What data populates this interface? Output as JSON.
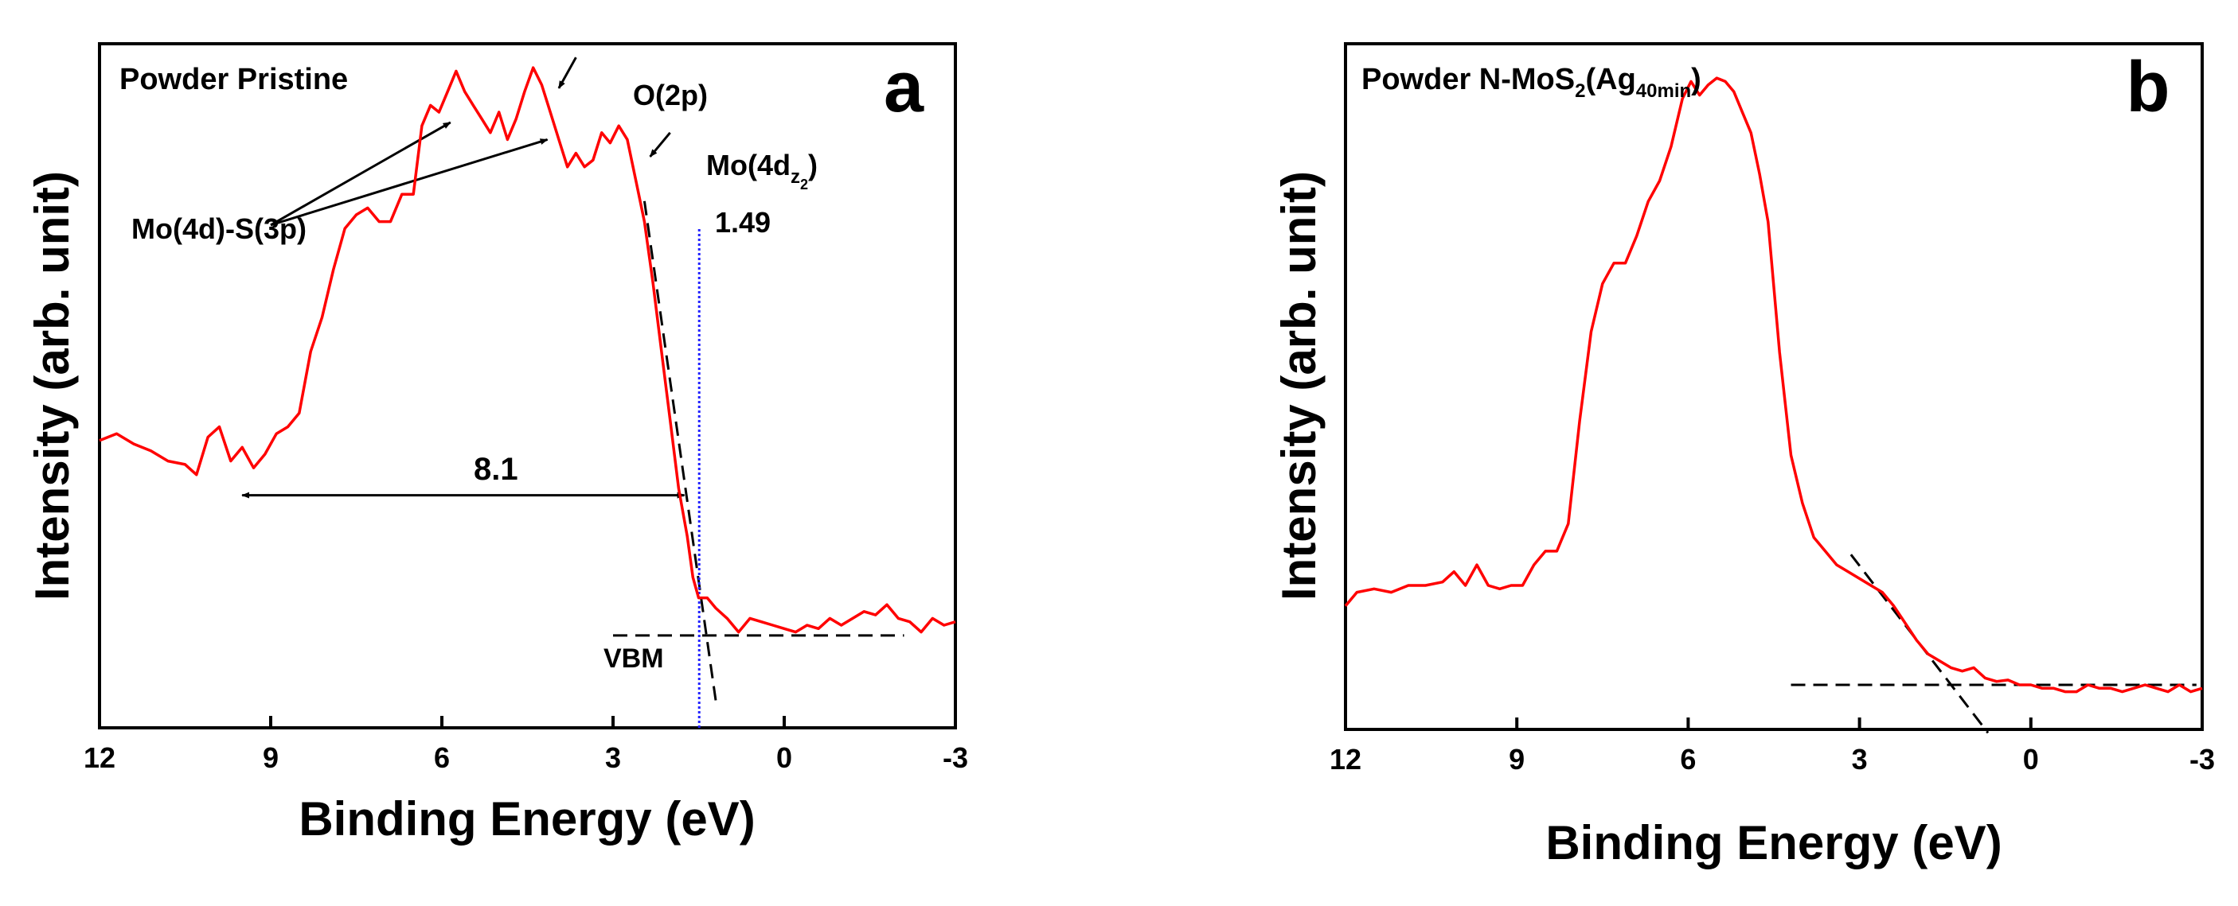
{
  "chart_data": [
    {
      "type": "line",
      "panel_label": "a",
      "title": "Powder Pristine",
      "xlabel": "Binding Energy (eV)",
      "ylabel": "Intensity (arb. unit)",
      "xlim": [
        12,
        -3
      ],
      "xticks": [
        12,
        9,
        6,
        3,
        0,
        -3
      ],
      "xtick_labels": [
        "12",
        "9",
        "6",
        "3",
        "0",
        "-3"
      ],
      "ylim": [
        0,
        1
      ],
      "series": [
        {
          "name": "Powder Pristine",
          "color": "#ff0000",
          "x": [
            12.0,
            11.7,
            11.4,
            11.1,
            10.8,
            10.5,
            10.3,
            10.1,
            9.9,
            9.7,
            9.5,
            9.3,
            9.1,
            8.9,
            8.7,
            8.5,
            8.3,
            8.1,
            7.9,
            7.7,
            7.5,
            7.3,
            7.1,
            6.9,
            6.7,
            6.5,
            6.35,
            6.2,
            6.05,
            5.9,
            5.75,
            5.6,
            5.45,
            5.3,
            5.15,
            5.0,
            4.85,
            4.7,
            4.55,
            4.4,
            4.25,
            4.1,
            3.95,
            3.8,
            3.65,
            3.5,
            3.35,
            3.2,
            3.05,
            2.9,
            2.75,
            2.6,
            2.45,
            2.3,
            2.15,
            2.0,
            1.85,
            1.7,
            1.6,
            1.5,
            1.35,
            1.2,
            1.0,
            0.8,
            0.6,
            0.4,
            0.2,
            0.0,
            -0.2,
            -0.4,
            -0.6,
            -0.8,
            -1.0,
            -1.2,
            -1.4,
            -1.6,
            -1.8,
            -2.0,
            -2.2,
            -2.4,
            -2.6,
            -2.8,
            -3.0
          ],
          "values": [
            0.42,
            0.43,
            0.415,
            0.405,
            0.39,
            0.385,
            0.37,
            0.425,
            0.44,
            0.39,
            0.41,
            0.38,
            0.4,
            0.43,
            0.44,
            0.46,
            0.55,
            0.6,
            0.67,
            0.73,
            0.75,
            0.76,
            0.74,
            0.74,
            0.78,
            0.78,
            0.88,
            0.91,
            0.9,
            0.93,
            0.96,
            0.93,
            0.91,
            0.89,
            0.87,
            0.9,
            0.86,
            0.89,
            0.93,
            0.965,
            0.94,
            0.9,
            0.86,
            0.82,
            0.84,
            0.82,
            0.83,
            0.87,
            0.855,
            0.88,
            0.86,
            0.8,
            0.74,
            0.65,
            0.55,
            0.45,
            0.35,
            0.28,
            0.22,
            0.19,
            0.19,
            0.175,
            0.16,
            0.14,
            0.16,
            0.155,
            0.15,
            0.145,
            0.14,
            0.15,
            0.145,
            0.16,
            0.15,
            0.16,
            0.17,
            0.165,
            0.18,
            0.16,
            0.155,
            0.14,
            0.16,
            0.15,
            0.155
          ]
        }
      ],
      "guides": {
        "baseline_dashed": {
          "x": [
            3.0,
            -2.1
          ],
          "y": 0.135
        },
        "edge_tangent_dashed": {
          "x": [
            2.45,
            1.2
          ],
          "y": [
            0.77,
            0.04
          ]
        },
        "vbm_line": {
          "x": 1.49,
          "y": [
            0.0,
            0.73
          ],
          "color": "#2222ff"
        },
        "double_arrow": {
          "x": [
            9.5,
            1.75
          ],
          "y": 0.34
        },
        "label_arrows": [
          {
            "from": [
              9.0,
              0.735
            ],
            "to": [
              5.85,
              0.885
            ]
          },
          {
            "from": [
              9.0,
              0.735
            ],
            "to": [
              4.15,
              0.86
            ]
          },
          {
            "from": [
              3.65,
              0.98
            ],
            "to": [
              3.95,
              0.935
            ]
          },
          {
            "from": [
              2.0,
              0.87
            ],
            "to": [
              2.35,
              0.835
            ]
          }
        ]
      },
      "annotations": {
        "o2p": "O(2p)",
        "mo4dz2_prefix": "Mo(4d",
        "mo4dz2_sub": "z",
        "mo4dz2_subsup": "2",
        "mo4dz2_suffix": ")",
        "mo4d_s3p": "Mo(4d)-S(3p)",
        "vbm_value": "1.49",
        "gap_value": "8.1",
        "vbm_label": "VBM"
      }
    },
    {
      "type": "line",
      "panel_label": "b",
      "title_prefix": "Powder N-MoS",
      "title_sub": "2",
      "title_mid": "(Ag",
      "title_sub2": "40min",
      "title_suffix": ")",
      "xlabel": "Binding Energy (eV)",
      "ylabel": "Intensity (arb. unit)",
      "xlim": [
        12,
        -3
      ],
      "xticks": [
        12,
        9,
        6,
        3,
        0,
        -3
      ],
      "xtick_labels": [
        "12",
        "9",
        "6",
        "3",
        "0",
        "-3"
      ],
      "ylim": [
        0,
        1
      ],
      "series": [
        {
          "name": "Powder N-MoS2(Ag40min)",
          "color": "#ff0000",
          "x": [
            12.0,
            11.8,
            11.5,
            11.2,
            10.9,
            10.6,
            10.3,
            10.1,
            9.9,
            9.7,
            9.5,
            9.3,
            9.1,
            8.9,
            8.7,
            8.5,
            8.3,
            8.1,
            7.9,
            7.7,
            7.5,
            7.3,
            7.1,
            6.9,
            6.7,
            6.5,
            6.3,
            6.1,
            5.95,
            5.8,
            5.65,
            5.5,
            5.35,
            5.2,
            5.05,
            4.9,
            4.75,
            4.6,
            4.4,
            4.2,
            4.0,
            3.8,
            3.6,
            3.4,
            3.2,
            3.0,
            2.8,
            2.6,
            2.4,
            2.2,
            2.0,
            1.8,
            1.6,
            1.4,
            1.2,
            1.0,
            0.8,
            0.6,
            0.4,
            0.2,
            0.0,
            -0.2,
            -0.4,
            -0.6,
            -0.8,
            -1.0,
            -1.2,
            -1.4,
            -1.6,
            -1.8,
            -2.0,
            -2.2,
            -2.4,
            -2.6,
            -2.8,
            -3.0
          ],
          "values": [
            0.18,
            0.2,
            0.205,
            0.2,
            0.21,
            0.21,
            0.215,
            0.23,
            0.21,
            0.24,
            0.21,
            0.205,
            0.21,
            0.21,
            0.24,
            0.26,
            0.26,
            0.3,
            0.45,
            0.58,
            0.65,
            0.68,
            0.68,
            0.72,
            0.77,
            0.8,
            0.85,
            0.92,
            0.945,
            0.925,
            0.94,
            0.95,
            0.945,
            0.93,
            0.9,
            0.87,
            0.81,
            0.74,
            0.55,
            0.4,
            0.33,
            0.28,
            0.26,
            0.24,
            0.23,
            0.22,
            0.21,
            0.2,
            0.18,
            0.155,
            0.13,
            0.11,
            0.1,
            0.09,
            0.085,
            0.09,
            0.075,
            0.07,
            0.072,
            0.065,
            0.065,
            0.06,
            0.06,
            0.055,
            0.055,
            0.065,
            0.06,
            0.06,
            0.055,
            0.06,
            0.065,
            0.06,
            0.055,
            0.065,
            0.055,
            0.06
          ]
        }
      ],
      "guides": {
        "baseline_dashed": {
          "x": [
            4.2,
            -2.9
          ],
          "y": 0.065
        },
        "edge_tangent_dashed": {
          "x": [
            3.15,
            0.75
          ],
          "y": [
            0.255,
            -0.005
          ]
        }
      }
    }
  ]
}
